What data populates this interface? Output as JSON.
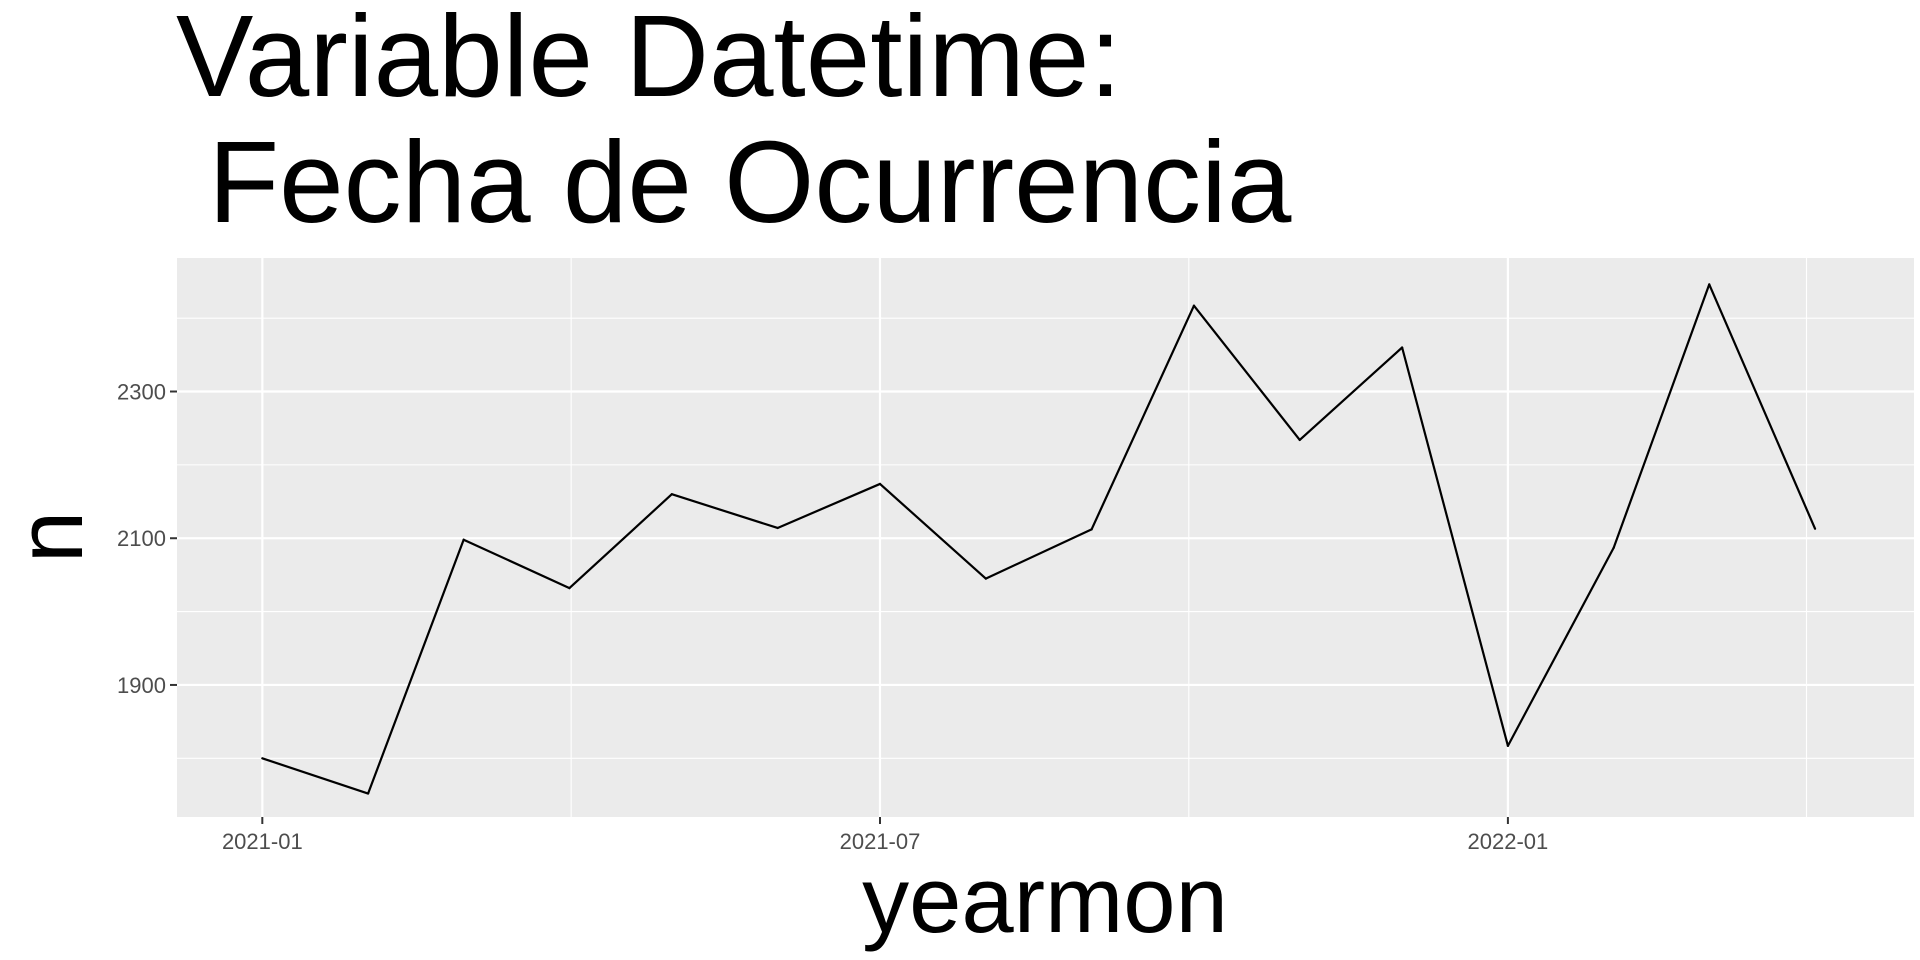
{
  "chart_data": {
    "type": "line",
    "title_lines": [
      "Variable Datetime:",
      " Fecha de Ocurrencia"
    ],
    "xlabel": "yearmon",
    "ylabel": "n",
    "x": [
      "2021-01",
      "2021-02",
      "2021-03",
      "2021-04",
      "2021-05",
      "2021-06",
      "2021-07",
      "2021-08",
      "2021-09",
      "2021-10",
      "2021-11",
      "2021-12",
      "2022-01",
      "2022-02",
      "2022-03",
      "2022-04"
    ],
    "series": [
      {
        "values": [
          1800,
          1752,
          2098,
          2032,
          2160,
          2114,
          2174,
          2045,
          2112,
          2417,
          2234,
          2360,
          1817,
          2087,
          2446,
          2113
        ]
      }
    ],
    "x_ticks": [
      "2021-01",
      "2021-07",
      "2022-01"
    ],
    "y_ticks": [
      1900,
      2100,
      2300
    ],
    "xlim": [
      "2020-12-07",
      "2022-04-30"
    ],
    "ylim": [
      1720,
      2482
    ],
    "grid": true,
    "colors": {
      "panel_background": "#ebebeb",
      "grid": "#ffffff",
      "line": "#000000",
      "tick_text": "#4d4d4d",
      "axis_ticks": "#333333"
    }
  }
}
